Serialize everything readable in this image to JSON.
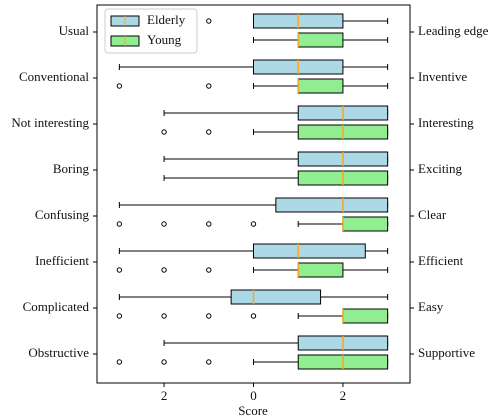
{
  "chart_data": {
    "type": "boxplot",
    "orientation": "horizontal",
    "xlabel": "Score",
    "categories": [
      "Usual",
      "Conventional",
      "Not interesting",
      "Boring",
      "Confusing",
      "Inefficient",
      "Complicated",
      "Obstructive"
    ],
    "right_labels": [
      "Leading edge",
      "Inventive",
      "Interesting",
      "Exciting",
      "Clear",
      "Efficient",
      "Easy",
      "Supportive"
    ],
    "xlim": [
      -3.5,
      3.5
    ],
    "xticks": [
      {
        "value": -2,
        "label": "2"
      },
      0,
      2
    ],
    "median_color": "#f5a623",
    "legend": "upper left",
    "series": [
      {
        "name": "Elderly",
        "color": "#add8e6",
        "stats": [
          {
            "whislo": 0,
            "q1": 0,
            "med": 1,
            "q3": 2,
            "whishi": 3,
            "fliers": [
              -1
            ]
          },
          {
            "whislo": -3,
            "q1": 0,
            "med": 1,
            "q3": 2,
            "whishi": 3,
            "fliers": []
          },
          {
            "whislo": -2,
            "q1": 1,
            "med": 2,
            "q3": 3,
            "whishi": 3,
            "fliers": []
          },
          {
            "whislo": -2,
            "q1": 1,
            "med": 2,
            "q3": 3,
            "whishi": 3,
            "fliers": []
          },
          {
            "whislo": -3,
            "q1": 0.5,
            "med": 2,
            "q3": 3,
            "whishi": 3,
            "fliers": []
          },
          {
            "whislo": -3,
            "q1": 0,
            "med": 1,
            "q3": 2.5,
            "whishi": 3,
            "fliers": []
          },
          {
            "whislo": -3,
            "q1": -0.5,
            "med": 0,
            "q3": 1.5,
            "whishi": 3,
            "fliers": []
          },
          {
            "whislo": -2,
            "q1": 1,
            "med": 2,
            "q3": 3,
            "whishi": 3,
            "fliers": []
          }
        ]
      },
      {
        "name": "Young",
        "color": "#90ee90",
        "stats": [
          {
            "whislo": 0,
            "q1": 1,
            "med": 1,
            "q3": 2,
            "whishi": 3,
            "fliers": []
          },
          {
            "whislo": 0,
            "q1": 1,
            "med": 1,
            "q3": 2,
            "whishi": 3,
            "fliers": [
              -3,
              -1
            ]
          },
          {
            "whislo": 0,
            "q1": 1,
            "med": 2,
            "q3": 3,
            "whishi": 3,
            "fliers": [
              -2,
              -1
            ]
          },
          {
            "whislo": -2,
            "q1": 1,
            "med": 2,
            "q3": 3,
            "whishi": 3,
            "fliers": []
          },
          {
            "whislo": 1,
            "q1": 2,
            "med": 2,
            "q3": 3,
            "whishi": 3,
            "fliers": [
              -3,
              -2,
              -1,
              0
            ]
          },
          {
            "whislo": 0,
            "q1": 1,
            "med": 1,
            "q3": 2,
            "whishi": 3,
            "fliers": [
              -3,
              -2,
              -1
            ]
          },
          {
            "whislo": 1,
            "q1": 2,
            "med": 2,
            "q3": 3,
            "whishi": 3,
            "fliers": [
              -3,
              -2,
              -1,
              0
            ]
          },
          {
            "whislo": 0,
            "q1": 1,
            "med": 2,
            "q3": 3,
            "whishi": 3,
            "fliers": [
              -3,
              -2,
              -1
            ]
          }
        ]
      }
    ]
  }
}
